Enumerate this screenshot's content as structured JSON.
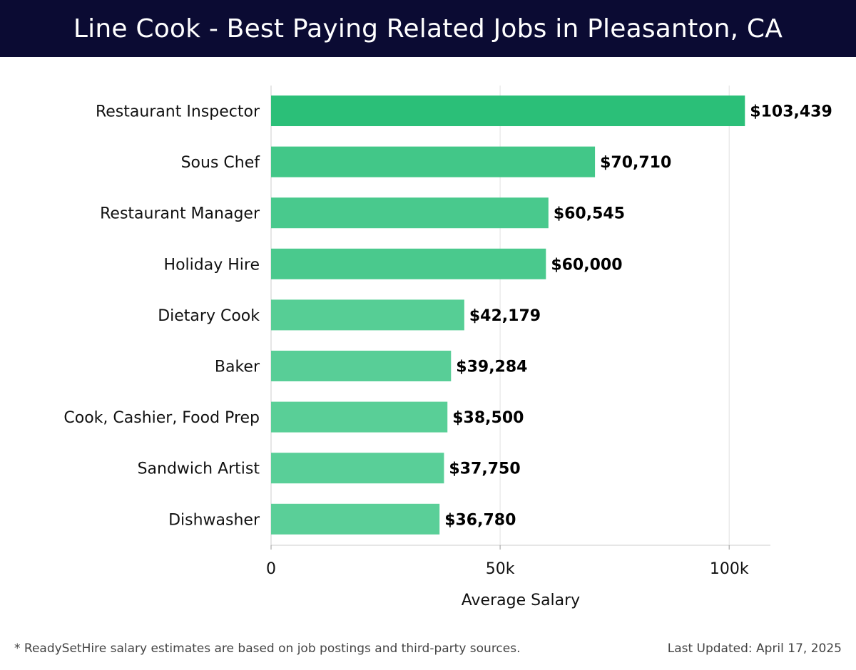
{
  "header": {
    "title": "Line Cook - Best Paying Related Jobs in Pleasanton, CA"
  },
  "chart_data": {
    "type": "bar",
    "orientation": "horizontal",
    "categories": [
      "Restaurant Inspector",
      "Sous Chef",
      "Restaurant Manager",
      "Holiday Hire",
      "Dietary Cook",
      "Baker",
      "Cook, Cashier, Food Prep",
      "Sandwich Artist",
      "Dishwasher"
    ],
    "values": [
      103439,
      70710,
      60545,
      60000,
      42179,
      39284,
      38500,
      37750,
      36780
    ],
    "value_labels": [
      "$103,439",
      "$70,710",
      "$60,545",
      "$60,000",
      "$42,179",
      "$39,284",
      "$38,500",
      "$37,750",
      "$36,780"
    ],
    "xlabel": "Average Salary",
    "ylabel": "",
    "xlim": [
      0,
      109000
    ],
    "ticks": [
      0,
      50000,
      100000
    ],
    "tick_labels": [
      "0",
      "50k",
      "100k"
    ],
    "grid": true,
    "colors": {
      "high": "#2bbf78",
      "low": "#5acf98",
      "grid": "#e2e2e2",
      "axis": "#cccccc"
    }
  },
  "footer": {
    "note": "* ReadySetHire salary estimates are based on job postings and third-party sources.",
    "updated": "Last Updated: April 17, 2025"
  }
}
